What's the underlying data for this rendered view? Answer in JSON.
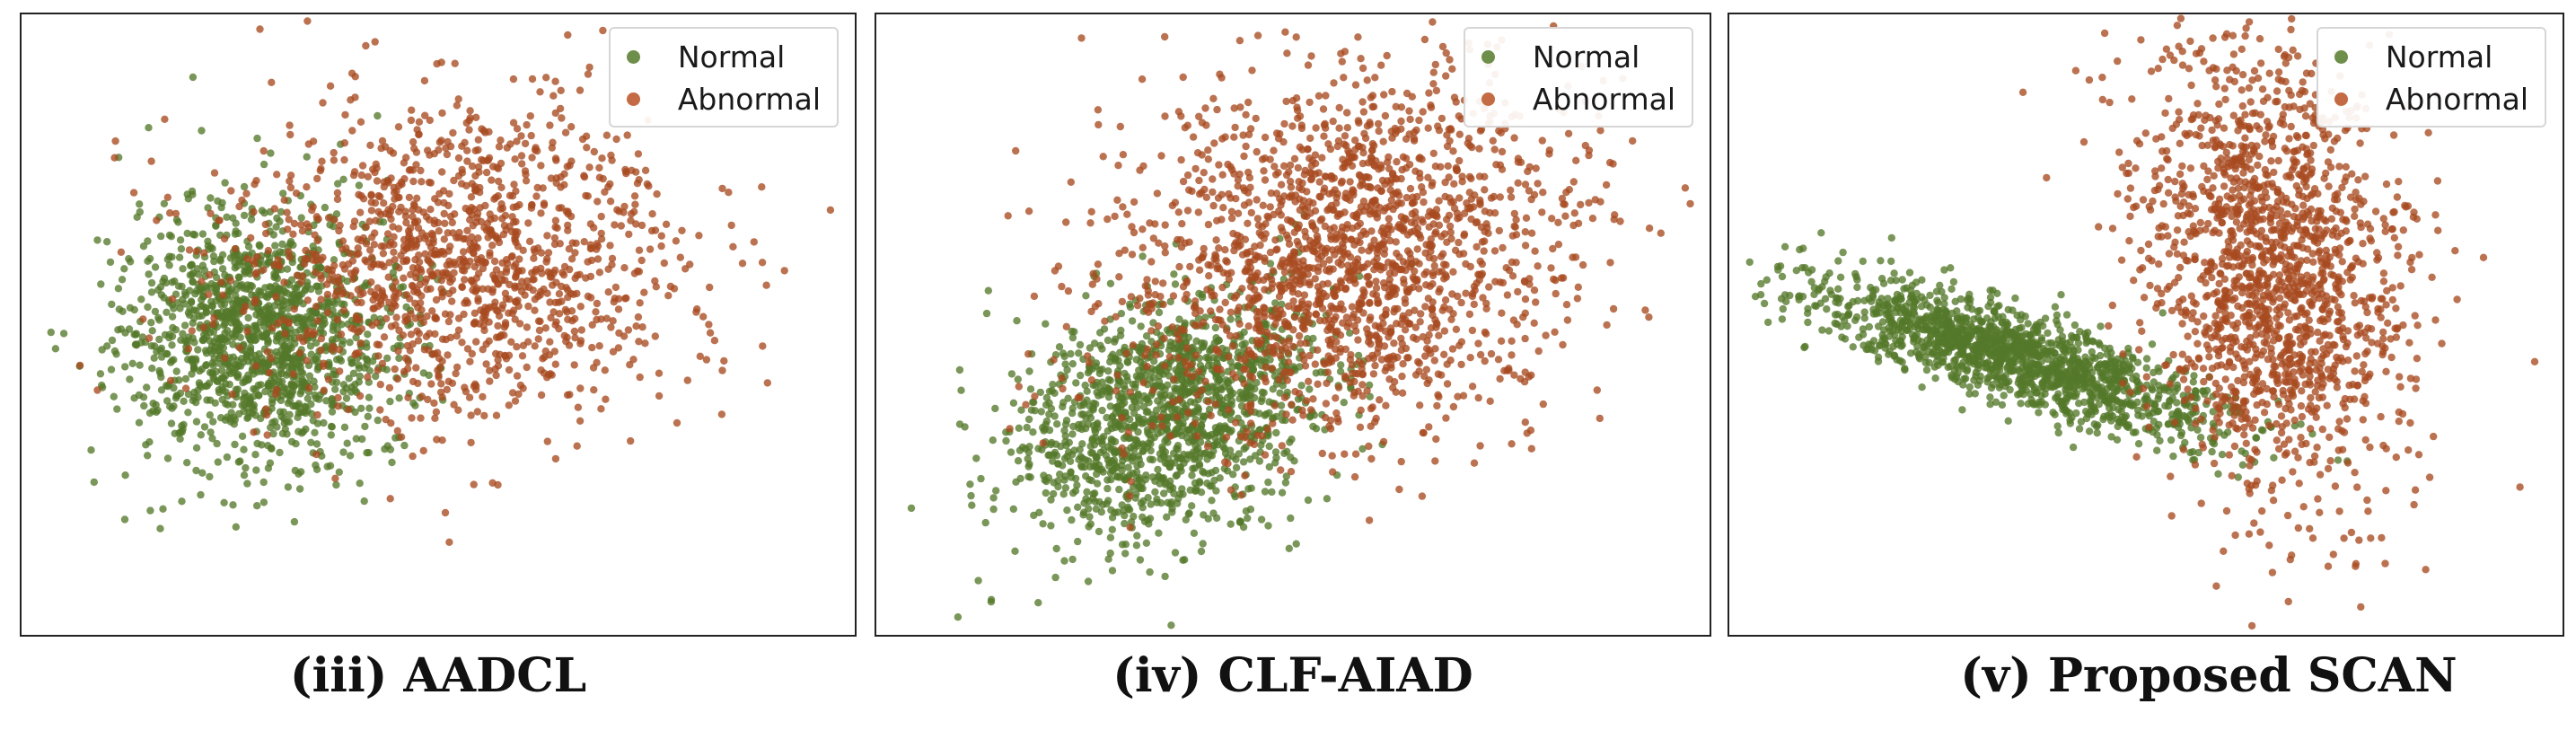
{
  "colors": {
    "normal": "#55792a",
    "abnormal": "#a84a20"
  },
  "chart_data": [
    {
      "type": "scatter",
      "caption": "(iii) AADCL",
      "xlim": [
        -4.0,
        4.0
      ],
      "ylim": [
        -3.2,
        3.0
      ],
      "legend_position": "top-right",
      "series": [
        {
          "name": "Normal",
          "color": "#55792a",
          "n": 1400,
          "center": [
            -1.7,
            -0.2
          ],
          "spread": [
            0.65,
            0.65
          ],
          "rho": 0.0
        },
        {
          "name": "Abnormal",
          "color": "#a84a20",
          "n": 1300,
          "center": [
            0.2,
            0.5
          ],
          "spread": [
            1.1,
            0.8
          ],
          "rho": 0.0
        }
      ]
    },
    {
      "type": "scatter",
      "caption": "(iv) CLF-AIAD",
      "xlim": [
        -4.0,
        4.0
      ],
      "ylim": [
        -3.2,
        3.0
      ],
      "legend_position": "top-right",
      "series": [
        {
          "name": "Normal",
          "color": "#55792a",
          "n": 1400,
          "center": [
            -1.2,
            -1.0
          ],
          "spread": [
            0.75,
            0.6
          ],
          "rho": 0.35
        },
        {
          "name": "Abnormal",
          "color": "#a84a20",
          "n": 1800,
          "center": [
            0.5,
            0.6
          ],
          "spread": [
            1.1,
            0.95
          ],
          "rho": 0.15
        }
      ]
    },
    {
      "type": "scatter",
      "caption": "(v) Proposed SCAN",
      "xlim": [
        -4.0,
        4.0
      ],
      "ylim": [
        -3.2,
        3.0
      ],
      "legend_position": "top-right",
      "series": [
        {
          "name": "Normal",
          "color": "#55792a",
          "n": 1500,
          "center": [
            -1.3,
            -0.4
          ],
          "spread": [
            0.95,
            0.38
          ],
          "rho": -0.8
        },
        {
          "name": "Abnormal",
          "color": "#a84a20",
          "n": 1600,
          "center": [
            1.2,
            0.5
          ],
          "spread": [
            0.65,
            1.15
          ],
          "rho": -0.2
        }
      ]
    }
  ]
}
